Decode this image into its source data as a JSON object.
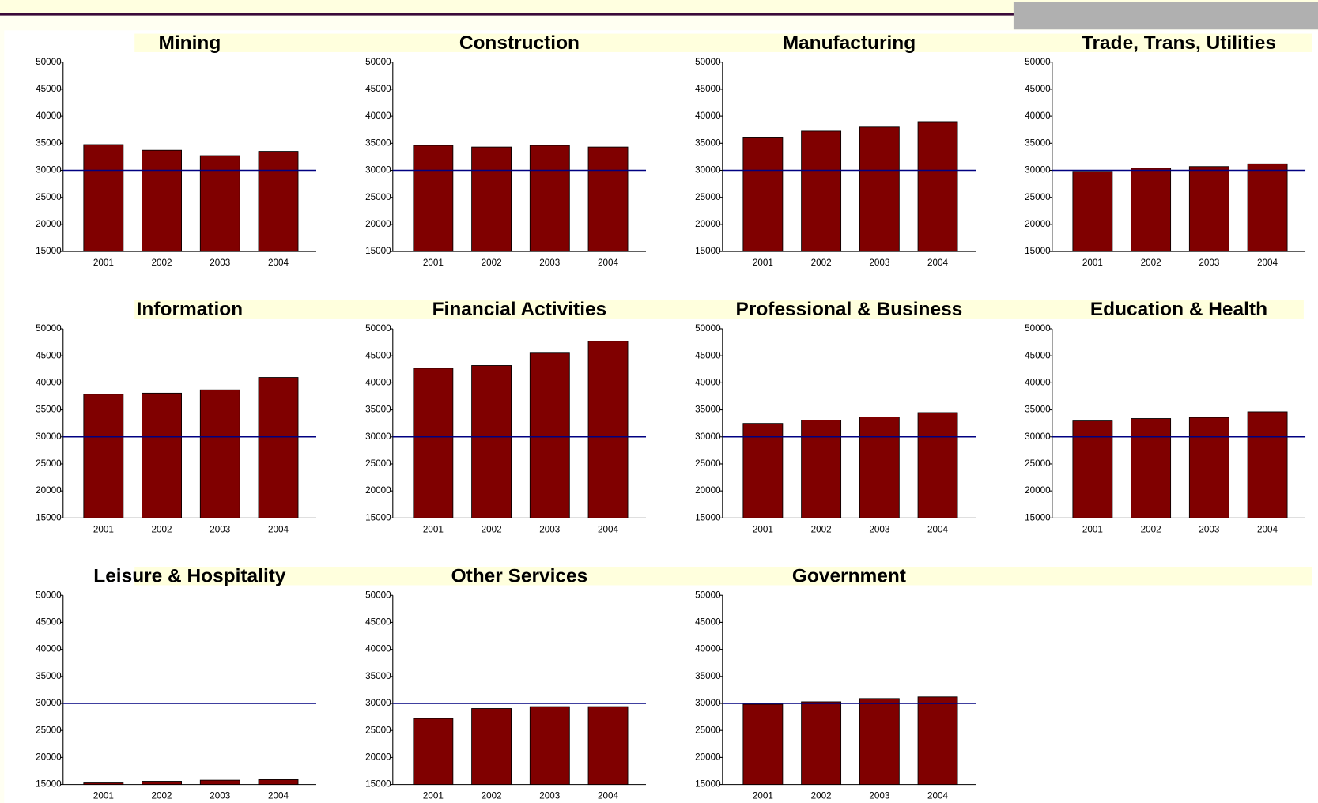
{
  "chart_data": [
    {
      "type": "bar",
      "title": "Mining",
      "categories": [
        "2001",
        "2002",
        "2003",
        "2004"
      ],
      "values": [
        34750,
        33700,
        32700,
        33500
      ],
      "color": "#800000",
      "ylim": [
        15000,
        50000
      ],
      "yticks": [
        15000,
        20000,
        25000,
        30000,
        35000,
        40000,
        45000,
        50000
      ],
      "reference_line": 30000,
      "reference_color": "#000080"
    },
    {
      "type": "bar",
      "title": "Construction",
      "categories": [
        "2001",
        "2002",
        "2003",
        "2004"
      ],
      "values": [
        34600,
        34300,
        34600,
        34300
      ],
      "color": "#800000",
      "ylim": [
        15000,
        50000
      ],
      "yticks": [
        15000,
        20000,
        25000,
        30000,
        35000,
        40000,
        45000,
        50000
      ],
      "reference_line": 30000,
      "reference_color": "#000080"
    },
    {
      "type": "bar",
      "title": "Manufacturing",
      "categories": [
        "2001",
        "2002",
        "2003",
        "2004"
      ],
      "values": [
        36150,
        37250,
        38000,
        39000
      ],
      "color": "#800000",
      "ylim": [
        15000,
        50000
      ],
      "yticks": [
        15000,
        20000,
        25000,
        30000,
        35000,
        40000,
        45000,
        50000
      ],
      "reference_line": 30000,
      "reference_color": "#000080"
    },
    {
      "type": "bar",
      "title": "Trade, Trans, Utilities",
      "categories": [
        "2001",
        "2002",
        "2003",
        "2004"
      ],
      "values": [
        29800,
        30400,
        30700,
        31200
      ],
      "color": "#800000",
      "ylim": [
        15000,
        50000
      ],
      "yticks": [
        15000,
        20000,
        25000,
        30000,
        35000,
        40000,
        45000,
        50000
      ],
      "reference_line": 30000,
      "reference_color": "#000080"
    },
    {
      "type": "bar",
      "title": "Information",
      "categories": [
        "2001",
        "2002",
        "2003",
        "2004"
      ],
      "values": [
        37900,
        38100,
        38700,
        41000
      ],
      "color": "#800000",
      "ylim": [
        15000,
        50000
      ],
      "yticks": [
        15000,
        20000,
        25000,
        30000,
        35000,
        40000,
        45000,
        50000
      ],
      "reference_line": 30000,
      "reference_color": "#000080"
    },
    {
      "type": "bar",
      "title": "Financial Activities",
      "categories": [
        "2001",
        "2002",
        "2003",
        "2004"
      ],
      "values": [
        42700,
        43200,
        45500,
        47700
      ],
      "color": "#800000",
      "ylim": [
        15000,
        50000
      ],
      "yticks": [
        15000,
        20000,
        25000,
        30000,
        35000,
        40000,
        45000,
        50000
      ],
      "reference_line": 30000,
      "reference_color": "#000080"
    },
    {
      "type": "bar",
      "title": "Professional & Business",
      "categories": [
        "2001",
        "2002",
        "2003",
        "2004"
      ],
      "values": [
        32500,
        33100,
        33700,
        34500
      ],
      "color": "#800000",
      "ylim": [
        15000,
        50000
      ],
      "yticks": [
        15000,
        20000,
        25000,
        30000,
        35000,
        40000,
        45000,
        50000
      ],
      "reference_line": 30000,
      "reference_color": "#000080"
    },
    {
      "type": "bar",
      "title": "Education & Health",
      "categories": [
        "2001",
        "2002",
        "2003",
        "2004"
      ],
      "values": [
        32950,
        33400,
        33600,
        34650
      ],
      "color": "#800000",
      "ylim": [
        15000,
        50000
      ],
      "yticks": [
        15000,
        20000,
        25000,
        30000,
        35000,
        40000,
        45000,
        50000
      ],
      "reference_line": 30000,
      "reference_color": "#000080"
    },
    {
      "type": "bar",
      "title": "Leisure & Hospitality",
      "categories": [
        "2001",
        "2002",
        "2003",
        "2004"
      ],
      "values": [
        15300,
        15600,
        15800,
        15900
      ],
      "color": "#800000",
      "ylim": [
        15000,
        50000
      ],
      "yticks": [
        15000,
        20000,
        25000,
        30000,
        35000,
        40000,
        45000,
        50000
      ],
      "reference_line": 30000,
      "reference_color": "#000080"
    },
    {
      "type": "bar",
      "title": "Other Services",
      "categories": [
        "2001",
        "2002",
        "2003",
        "2004"
      ],
      "values": [
        27200,
        29050,
        29400,
        29400
      ],
      "color": "#800000",
      "ylim": [
        15000,
        50000
      ],
      "yticks": [
        15000,
        20000,
        25000,
        30000,
        35000,
        40000,
        45000,
        50000
      ],
      "reference_line": 30000,
      "reference_color": "#000080"
    },
    {
      "type": "bar",
      "title": "Government",
      "categories": [
        "2001",
        "2002",
        "2003",
        "2004"
      ],
      "values": [
        29850,
        30300,
        30900,
        31200
      ],
      "color": "#800000",
      "ylim": [
        15000,
        50000
      ],
      "yticks": [
        15000,
        20000,
        25000,
        30000,
        35000,
        40000,
        45000,
        50000
      ],
      "reference_line": 30000,
      "reference_color": "#000080"
    }
  ]
}
